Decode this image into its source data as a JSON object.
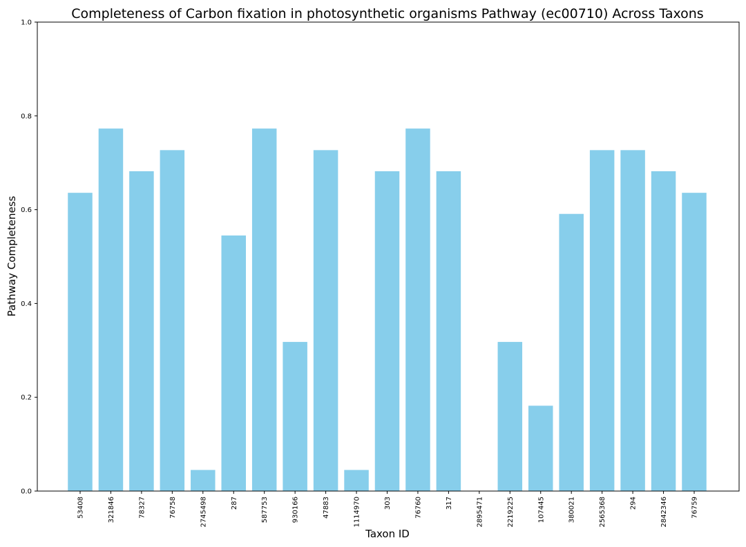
{
  "chart_data": {
    "type": "bar",
    "title": "Completeness of Carbon fixation in photosynthetic organisms Pathway (ec00710) Across Taxons",
    "xlabel": "Taxon ID",
    "ylabel": "Pathway Completeness",
    "ylim": [
      0,
      1.0
    ],
    "yticks": [
      "0.0",
      "0.2",
      "0.4",
      "0.6",
      "0.8",
      "1.0"
    ],
    "grid": false,
    "bar_color": "#87ceeb",
    "categories": [
      "53408",
      "321846",
      "78327",
      "76758",
      "2745498",
      "287",
      "587753",
      "930166",
      "47883",
      "1114970",
      "303",
      "76760",
      "317",
      "2895471",
      "2219225",
      "107445",
      "380021",
      "2565368",
      "294",
      "2842346",
      "76759"
    ],
    "values": [
      0.636,
      0.773,
      0.682,
      0.727,
      0.045,
      0.545,
      0.773,
      0.318,
      0.727,
      0.045,
      0.682,
      0.773,
      0.682,
      0.0,
      0.318,
      0.182,
      0.591,
      0.727,
      0.727,
      0.682,
      0.636
    ]
  }
}
